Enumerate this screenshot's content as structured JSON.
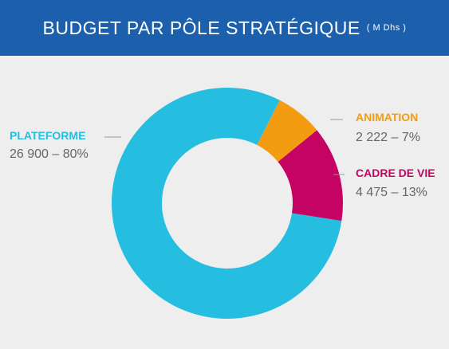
{
  "header": {
    "title": "BUDGET PAR PÔLE STRATÉGIQUE",
    "unit": "( M Dhs )"
  },
  "chart_data": {
    "type": "pie",
    "title": "BUDGET PAR PÔLE STRATÉGIQUE",
    "subtitle": "( M Dhs )",
    "legend": "none",
    "series": [
      {
        "name": "",
        "slices": [
          {
            "name": "PLATEFORME",
            "value": 26900,
            "label": "26 900 – 80%",
            "color": "#25bde0",
            "label_color": "#25bde0"
          },
          {
            "name": "ANIMATION",
            "value": 2222,
            "label": "2 222 – 7%",
            "color": "#f39c12",
            "label_color": "#f39c12"
          },
          {
            "name": "CADRE DE VIE",
            "value": 4475,
            "label": "4 475 – 13%",
            "color": "#c50363",
            "label_color": "#c50363"
          }
        ]
      }
    ]
  }
}
